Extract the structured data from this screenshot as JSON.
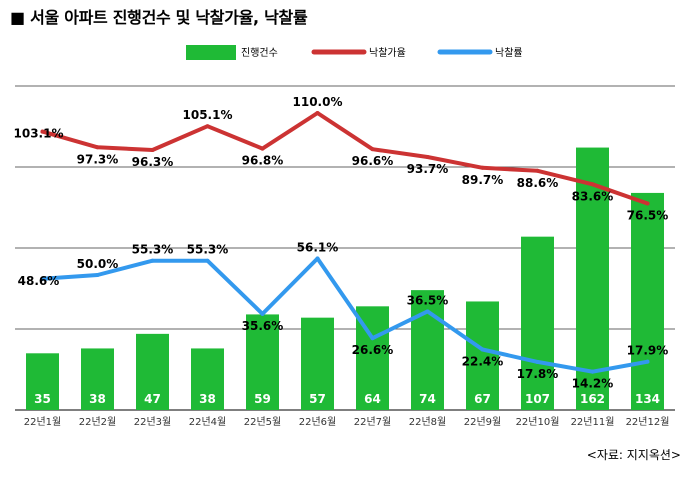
{
  "title": "■ 서울 아파트 진행건수 및 낙찰가율, 낙찰률",
  "source": "<자료: 지지옥션>",
  "colors": {
    "bars": "#1fba36",
    "price_line": "#cc3333",
    "rate_line": "#3399ee",
    "grid": "#333333"
  },
  "chart_data": {
    "type": "bar",
    "categories": [
      "22년1월",
      "22년2월",
      "22년3월",
      "22년4월",
      "22년5월",
      "22년6월",
      "22년7월",
      "22년8월",
      "22년9월",
      "22년10월",
      "22년11월",
      "22년12월"
    ],
    "series": [
      {
        "name": "진행건수",
        "type": "bar",
        "axis": "left",
        "values": [
          35,
          38,
          47,
          38,
          59,
          57,
          64,
          74,
          67,
          107,
          162,
          134
        ],
        "labels": [
          "35",
          "38",
          "47",
          "38",
          "59",
          "57",
          "64",
          "74",
          "67",
          "107",
          "162",
          "134"
        ]
      },
      {
        "name": "낙찰가율",
        "type": "line",
        "axis": "right",
        "values": [
          103.1,
          97.3,
          96.3,
          105.1,
          96.8,
          110.0,
          96.6,
          93.7,
          89.7,
          88.6,
          83.6,
          76.5
        ],
        "labels": [
          "103.1%",
          "97.3%",
          "96.3%",
          "105.1%",
          "96.8%",
          "110.0%",
          "96.6%",
          "93.7%",
          "89.7%",
          "88.6%",
          "83.6%",
          "76.5%"
        ]
      },
      {
        "name": "낙찰률",
        "type": "line",
        "axis": "right",
        "values": [
          48.6,
          50.0,
          55.3,
          55.3,
          35.6,
          56.1,
          26.6,
          36.5,
          22.4,
          17.8,
          14.2,
          17.9
        ],
        "labels": [
          "48.6%",
          "50.0%",
          "55.3%",
          "55.3%",
          "35.6%",
          "56.1%",
          "26.6%",
          "36.5%",
          "22.4%",
          "17.8%",
          "14.2%",
          "17.9%"
        ]
      }
    ],
    "left_axis_range": [
      0,
      200
    ],
    "right_axis_range": [
      0,
      120
    ],
    "grid": true,
    "legend_position": "top"
  }
}
